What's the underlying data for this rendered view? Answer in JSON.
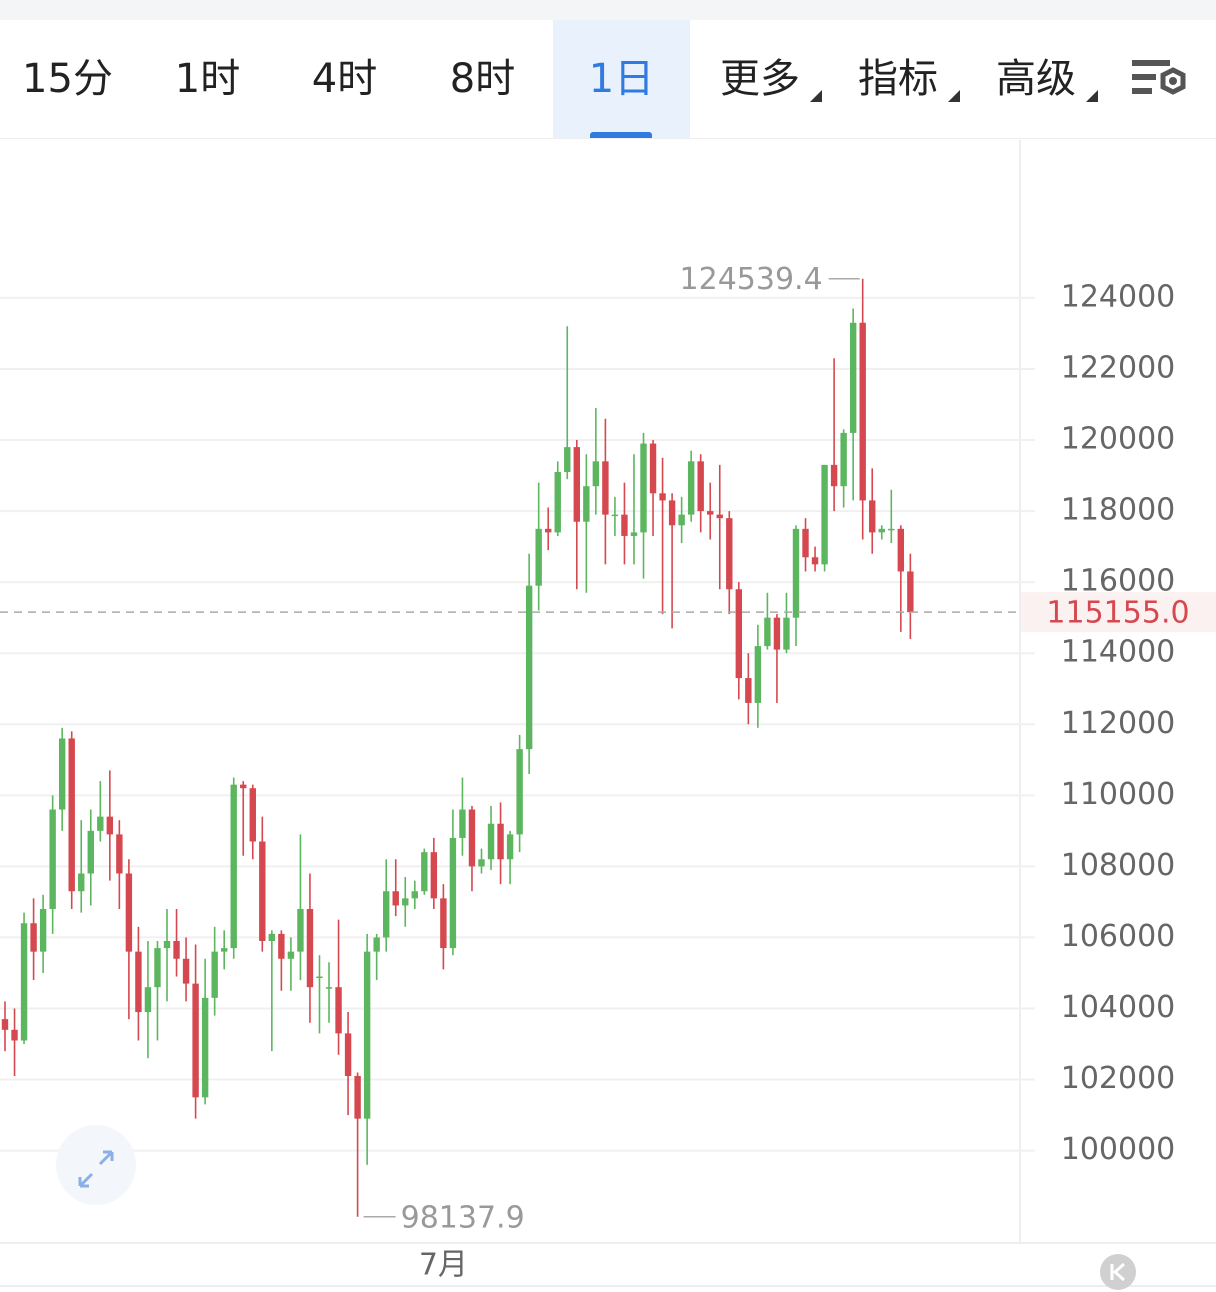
{
  "toolbar": {
    "tabs": [
      "15分",
      "1时",
      "4时",
      "8时",
      "1日",
      "更多",
      "指标",
      "高级"
    ]
  },
  "chart_data": {
    "type": "candlestick",
    "categories": [
      null,
      null,
      null,
      null,
      null,
      null,
      null,
      null,
      null,
      null,
      null,
      null,
      null,
      null,
      null,
      null,
      null,
      null,
      null,
      null,
      null,
      null,
      null,
      null,
      null,
      null,
      null,
      null,
      null,
      null,
      null,
      null,
      null,
      null,
      null,
      null,
      null,
      null,
      null,
      null,
      null,
      null,
      null,
      null,
      null,
      null,
      "7月",
      null,
      null,
      null,
      null,
      null,
      null,
      null,
      null,
      null,
      null,
      null,
      null,
      null,
      null,
      null,
      null,
      null,
      null,
      null,
      null,
      null,
      null,
      null,
      null,
      null,
      null,
      null,
      null,
      null,
      null,
      null,
      null,
      null,
      null,
      null,
      null,
      null,
      null,
      null,
      null,
      null,
      null,
      null,
      null,
      null,
      null,
      null,
      null,
      null
    ],
    "open": [
      103700,
      103400,
      103100,
      106400,
      105600,
      106800,
      109600,
      111600,
      107300,
      107800,
      109000,
      109400,
      108900,
      107800,
      105600,
      103900,
      104600,
      105700,
      105900,
      105400,
      104700,
      101500,
      104300,
      105600,
      105700,
      110300,
      110200,
      108700,
      105900,
      106100,
      105400,
      105600,
      106800,
      104900,
      104600,
      104600,
      103300,
      102100,
      100900,
      105600,
      106000,
      107300,
      106900,
      107100,
      107300,
      108400,
      107100,
      105700,
      108800,
      109600,
      108000,
      108200,
      109200,
      108200,
      108900,
      111300,
      115900,
      117500,
      117400,
      119100,
      119800,
      117700,
      118700,
      119400,
      117900,
      117900,
      117300,
      117400,
      119900,
      118500,
      118300,
      117600,
      117900,
      119400,
      118000,
      117900,
      117800,
      115800,
      113300,
      112600,
      114200,
      115000,
      114100,
      115000,
      117500,
      116700,
      116500,
      119300,
      118700,
      120200,
      123300,
      118300,
      117400,
      117500,
      117500,
      116300
    ],
    "high": [
      104200,
      104000,
      106700,
      107100,
      107200,
      110000,
      111900,
      111800,
      109300,
      109600,
      110400,
      110700,
      109300,
      108200,
      106300,
      105900,
      105900,
      106800,
      106800,
      106000,
      105800,
      105400,
      106300,
      106200,
      110500,
      110400,
      110300,
      109400,
      106200,
      106200,
      106000,
      108900,
      107800,
      105500,
      105300,
      106500,
      103900,
      102200,
      106100,
      106100,
      108200,
      108200,
      107700,
      107600,
      108500,
      108800,
      107500,
      109600,
      110500,
      109700,
      108500,
      109700,
      109800,
      109000,
      111700,
      116800,
      118800,
      118100,
      119400,
      123200,
      120000,
      119600,
      120900,
      120600,
      118400,
      118800,
      119600,
      120200,
      120000,
      119500,
      118500,
      118400,
      119700,
      119600,
      118800,
      119300,
      118000,
      116000,
      114000,
      114800,
      115700,
      115100,
      115700,
      117600,
      117800,
      117000,
      119300,
      122300,
      120300,
      123700,
      124539.4,
      119200,
      117600,
      118600,
      117600,
      116800
    ],
    "low": [
      102800,
      102100,
      103000,
      104800,
      105000,
      106100,
      109000,
      106800,
      106700,
      106900,
      108700,
      107600,
      106800,
      103700,
      103100,
      102600,
      103100,
      104200,
      104900,
      104200,
      100900,
      101300,
      103800,
      105100,
      105400,
      108300,
      108200,
      105600,
      102800,
      104500,
      104500,
      104800,
      103600,
      103300,
      103600,
      102700,
      101000,
      98137.9,
      99600,
      104800,
      105600,
      106600,
      106300,
      106800,
      107200,
      106800,
      105100,
      105500,
      108300,
      107300,
      107800,
      107900,
      107500,
      107500,
      108400,
      110600,
      115200,
      116900,
      117300,
      118900,
      115800,
      115700,
      117900,
      116500,
      117300,
      116500,
      116500,
      116100,
      117300,
      115100,
      114700,
      117100,
      117700,
      117400,
      117200,
      115800,
      115100,
      112700,
      112000,
      111900,
      114100,
      112600,
      114000,
      114200,
      116300,
      116300,
      116300,
      118000,
      118100,
      118300,
      117200,
      116800,
      117200,
      117100,
      114600,
      114400
    ],
    "close": [
      103400,
      103100,
      106400,
      105600,
      106800,
      109600,
      111600,
      107300,
      107800,
      109000,
      109400,
      108900,
      107800,
      105600,
      103900,
      104600,
      105700,
      105900,
      105400,
      104700,
      101500,
      104300,
      105600,
      105700,
      110300,
      110200,
      108700,
      105900,
      106100,
      105400,
      105600,
      106800,
      104600,
      104900,
      104600,
      103300,
      102100,
      100900,
      105600,
      106000,
      107300,
      106900,
      107100,
      107300,
      108400,
      107100,
      105700,
      108800,
      109600,
      108000,
      108200,
      109200,
      108200,
      108900,
      111300,
      115900,
      117500,
      117400,
      119100,
      119800,
      117700,
      118700,
      119400,
      117900,
      117900,
      117300,
      117400,
      119900,
      118500,
      118300,
      117600,
      117900,
      119400,
      118000,
      117900,
      117800,
      115800,
      113300,
      112600,
      114200,
      115000,
      114100,
      115000,
      117500,
      116700,
      116500,
      119300,
      118700,
      120200,
      123300,
      118300,
      117400,
      117500,
      117500,
      116300,
      115155
    ],
    "up_color": "#5cb660",
    "down_color": "#d5484f",
    "last_price": {
      "value": 115155,
      "label": "115155.0"
    },
    "ylim": [
      97400,
      128500
    ],
    "yticks": [
      100000,
      102000,
      104000,
      106000,
      108000,
      110000,
      112000,
      114000,
      116000,
      118000,
      120000,
      122000,
      124000
    ],
    "grid": true
  }
}
